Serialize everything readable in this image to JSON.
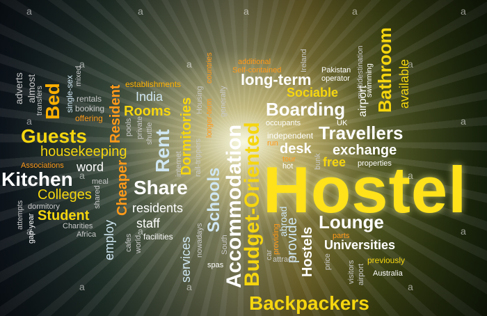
{
  "words": {
    "hostel": "Hostel",
    "backpackers": "Backpackers",
    "budget_oriented": "Budget-Oriented",
    "accommodation": "Accommodation",
    "travellers": "Travellers",
    "boarding": "Boarding",
    "bathroom": "Bathroom",
    "long_term": "long-term",
    "sociable": "Sociable",
    "lounge": "Lounge",
    "universities": "Universities",
    "guests": "Guests",
    "housekeeping": "housekeeping",
    "kitchen": "Kitchen",
    "colleges": "Colleges",
    "student": "Student",
    "share": "Share",
    "rent": "Rent",
    "rooms": "Rooms",
    "india": "India",
    "residents": "residents",
    "staff": "staff",
    "schools": "Schools",
    "dormitories": "Dormitories",
    "resident": "Resident",
    "cheaper": "Cheaper",
    "employ": "employ",
    "services": "services",
    "bed": "Bed",
    "word": "word",
    "desk": "desk",
    "exchange": "exchange",
    "free": "free",
    "properties": "properties",
    "hostels": "Hostels",
    "provide": "provide",
    "previously": "previously",
    "australia": "Australia",
    "establishments": "establishments",
    "self_contained": "Self-contained",
    "additional": "additional",
    "pakistan": "Pakistan",
    "operator": "operator",
    "swimming": "swimming",
    "multidestination": "multidestination",
    "airport": "airport",
    "available": "available",
    "independent": "independent",
    "occupants": "occupants",
    "run": "run",
    "tour": "tour",
    "hot": "hot",
    "bunk": "bunk",
    "parts": "parts",
    "visitors": "visitors",
    "price": "price",
    "car": "car",
    "attract": "attract",
    "providing": "providing",
    "abroad": "abroad",
    "associations": "Associations",
    "dormitory": "dormitory",
    "attempts": "attempts",
    "gap_year": "gap-year",
    "charities": "Charities",
    "africa": "Africa",
    "meal": "meal",
    "shared": "shared",
    "cafes": "cafes",
    "world": "world",
    "facilities": "facilities",
    "rentals": "rentals",
    "booking": "booking",
    "offering": "offering",
    "single_sex": "single-sex",
    "mixed": "mixed",
    "transfers": "transfers",
    "adverts": "adverts",
    "almost": "almost",
    "pools": "pools",
    "private": "private",
    "shuttle": "shuttle",
    "internet": "internet",
    "rail_trippers": "rail-trippers",
    "longer_term": "longer-term",
    "countries": "countries",
    "housing": "Housing",
    "generally": "generally",
    "nowadays": "nowadays",
    "south": "South",
    "spas": "spas",
    "ireland": "Ireland",
    "uk": "UK",
    "watermark": "a"
  }
}
